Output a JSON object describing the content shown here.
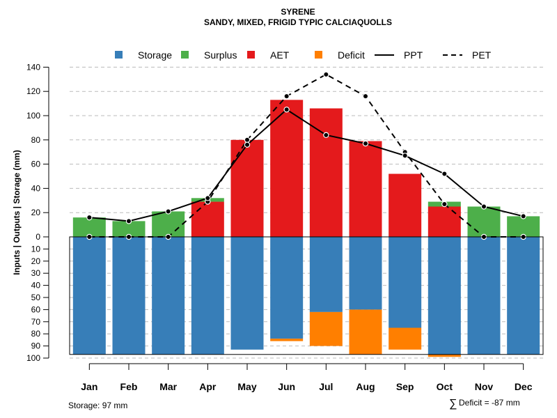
{
  "chart_data": {
    "type": "bar",
    "title": "SYRENE",
    "subtitle": "SANDY, MIXED, FRIGID TYPIC CALCIAQUOLLS",
    "ylabel": "Inputs | Outputs | Storage    (mm)",
    "categories": [
      "Jan",
      "Feb",
      "Mar",
      "Apr",
      "May",
      "Jun",
      "Jul",
      "Aug",
      "Sep",
      "Oct",
      "Nov",
      "Dec"
    ],
    "upper_ylim": [
      0,
      140
    ],
    "upper_ticks": [
      "0",
      "20",
      "40",
      "60",
      "80",
      "100",
      "120",
      "140"
    ],
    "lower_ylim": [
      0,
      100
    ],
    "lower_ticks": [
      "0",
      "10",
      "20",
      "30",
      "40",
      "50",
      "60",
      "70",
      "80",
      "90",
      "100"
    ],
    "series": [
      {
        "name": "Storage",
        "color": "#377EB8",
        "values": [
          97,
          97,
          97,
          97,
          93,
          84,
          62,
          60,
          75,
          97,
          97,
          97
        ]
      },
      {
        "name": "Surplus",
        "color": "#4DAF4A",
        "values": [
          16,
          13,
          21,
          3,
          0,
          0,
          0,
          0,
          0,
          4,
          25,
          17
        ]
      },
      {
        "name": "AET",
        "color": "#E41A1C",
        "values": [
          0,
          0,
          0,
          29,
          80,
          113,
          106,
          79,
          52,
          25,
          0,
          0
        ]
      },
      {
        "name": "Deficit",
        "color": "#FF7F00",
        "values": [
          0,
          0,
          0,
          0,
          0,
          -2,
          -28,
          -37,
          -18,
          -2,
          0,
          0
        ]
      },
      {
        "name": "PPT",
        "color": "#000000",
        "style": "solid",
        "values": [
          16,
          13,
          21,
          32,
          76,
          105,
          84,
          77,
          67,
          52,
          25,
          17
        ]
      },
      {
        "name": "PET",
        "color": "#000000",
        "style": "dashed",
        "values": [
          0,
          0,
          0,
          29,
          80,
          116,
          134,
          116,
          70,
          27,
          0,
          0
        ]
      }
    ],
    "legend": [
      "Storage",
      "Surplus",
      "AET",
      "Deficit",
      "PPT",
      "PET"
    ],
    "legend_position": "top",
    "grid": true
  },
  "footer": {
    "storage_text": "Storage: 97 mm",
    "deficit_symbol": "∑",
    "deficit_text": "Deficit = -87 mm"
  }
}
